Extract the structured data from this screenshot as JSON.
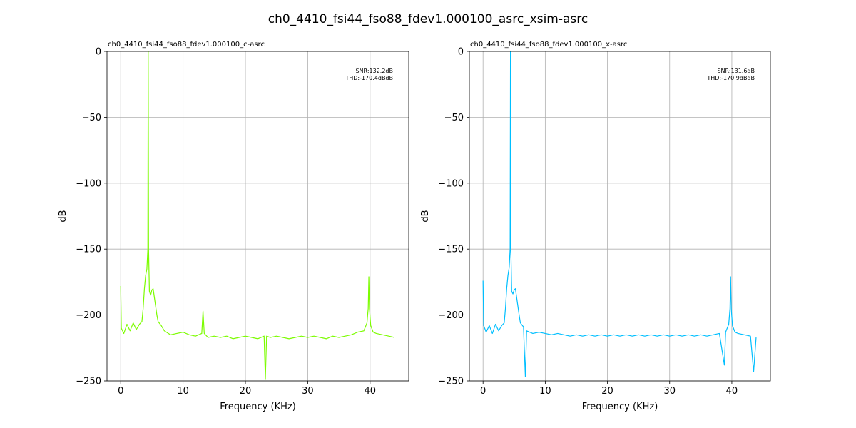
{
  "figure": {
    "suptitle": "ch0_4410_fsi44_fso88_fdev1.000100_asrc_xsim-asrc"
  },
  "chart_data": [
    {
      "type": "line",
      "title": "ch0_4410_fsi44_fso88_fdev1.000100_c-asrc",
      "xlabel": "Frequency (KHz)",
      "ylabel": "dB",
      "xlim": [
        -2.2,
        46.2
      ],
      "ylim": [
        -250,
        0
      ],
      "xticks": [
        0,
        10,
        20,
        30,
        40
      ],
      "yticks": [
        0,
        -50,
        -100,
        -150,
        -200,
        -250
      ],
      "grid": true,
      "annotation": [
        "SNR:132.2dB",
        "THD:-170.4dBdB"
      ],
      "annotation_placement": "top-right",
      "series": [
        {
          "color": "#7cfc00",
          "points": [
            [
              0.0,
              -178
            ],
            [
              0.1,
              -210
            ],
            [
              0.5,
              -214
            ],
            [
              1.0,
              -207
            ],
            [
              1.5,
              -212
            ],
            [
              2.0,
              -206
            ],
            [
              2.5,
              -211
            ],
            [
              3.0,
              -207
            ],
            [
              3.4,
              -205
            ],
            [
              3.6,
              -195
            ],
            [
              3.8,
              -180
            ],
            [
              4.0,
              -170
            ],
            [
              4.2,
              -165
            ],
            [
              4.35,
              -150
            ],
            [
              4.41,
              0
            ],
            [
              4.47,
              -150
            ],
            [
              4.6,
              -182
            ],
            [
              4.8,
              -185
            ],
            [
              5.0,
              -181
            ],
            [
              5.2,
              -180
            ],
            [
              5.5,
              -190
            ],
            [
              5.8,
              -200
            ],
            [
              6.0,
              -205
            ],
            [
              6.5,
              -208
            ],
            [
              7.0,
              -212
            ],
            [
              8.0,
              -215
            ],
            [
              9.0,
              -214
            ],
            [
              10.0,
              -213
            ],
            [
              11.0,
              -215
            ],
            [
              12.0,
              -216
            ],
            [
              13.0,
              -214
            ],
            [
              13.2,
              -197
            ],
            [
              13.4,
              -214
            ],
            [
              14.0,
              -217
            ],
            [
              15.0,
              -216
            ],
            [
              16.0,
              -217
            ],
            [
              17.0,
              -216
            ],
            [
              18.0,
              -218
            ],
            [
              19.0,
              -217
            ],
            [
              20.0,
              -216
            ],
            [
              21.0,
              -217
            ],
            [
              22.0,
              -218
            ],
            [
              23.0,
              -216
            ],
            [
              23.2,
              -249
            ],
            [
              23.4,
              -216
            ],
            [
              24.0,
              -217
            ],
            [
              25.0,
              -216
            ],
            [
              26.0,
              -217
            ],
            [
              27.0,
              -218
            ],
            [
              28.0,
              -217
            ],
            [
              29.0,
              -216
            ],
            [
              30.0,
              -217
            ],
            [
              31.0,
              -216
            ],
            [
              32.0,
              -217
            ],
            [
              33.0,
              -218
            ],
            [
              34.0,
              -216
            ],
            [
              35.0,
              -217
            ],
            [
              36.0,
              -216
            ],
            [
              37.0,
              -215
            ],
            [
              38.0,
              -213
            ],
            [
              39.0,
              -212
            ],
            [
              39.5,
              -206
            ],
            [
              39.7,
              -195
            ],
            [
              39.8,
              -171
            ],
            [
              39.9,
              -195
            ],
            [
              40.1,
              -208
            ],
            [
              40.5,
              -213
            ],
            [
              41.0,
              -214
            ],
            [
              42.0,
              -215
            ],
            [
              43.0,
              -216
            ],
            [
              43.9,
              -217
            ]
          ]
        }
      ]
    },
    {
      "type": "line",
      "title": "ch0_4410_fsi44_fso88_fdev1.000100_x-asrc",
      "xlabel": "Frequency (KHz)",
      "ylabel": "dB",
      "xlim": [
        -2.2,
        46.2
      ],
      "ylim": [
        -250,
        0
      ],
      "xticks": [
        0,
        10,
        20,
        30,
        40
      ],
      "yticks": [
        0,
        -50,
        -100,
        -150,
        -200,
        -250
      ],
      "grid": true,
      "annotation": [
        "SNR:131.6dB",
        "THD:-170.9dBdB"
      ],
      "annotation_placement": "top-right",
      "series": [
        {
          "color": "#00bfff",
          "points": [
            [
              0.0,
              -174
            ],
            [
              0.1,
              -208
            ],
            [
              0.5,
              -213
            ],
            [
              1.0,
              -208
            ],
            [
              1.5,
              -214
            ],
            [
              2.0,
              -207
            ],
            [
              2.5,
              -212
            ],
            [
              3.0,
              -208
            ],
            [
              3.4,
              -206
            ],
            [
              3.6,
              -195
            ],
            [
              3.8,
              -180
            ],
            [
              4.0,
              -170
            ],
            [
              4.2,
              -164
            ],
            [
              4.35,
              -150
            ],
            [
              4.41,
              0
            ],
            [
              4.47,
              -150
            ],
            [
              4.6,
              -182
            ],
            [
              4.8,
              -184
            ],
            [
              5.0,
              -181
            ],
            [
              5.2,
              -180
            ],
            [
              5.5,
              -190
            ],
            [
              5.8,
              -200
            ],
            [
              6.0,
              -206
            ],
            [
              6.5,
              -209
            ],
            [
              6.8,
              -247
            ],
            [
              7.0,
              -212
            ],
            [
              8.0,
              -214
            ],
            [
              9.0,
              -213
            ],
            [
              10.0,
              -214
            ],
            [
              11.0,
              -215
            ],
            [
              12.0,
              -214
            ],
            [
              13.0,
              -215
            ],
            [
              14.0,
              -216
            ],
            [
              15.0,
              -215
            ],
            [
              16.0,
              -216
            ],
            [
              17.0,
              -215
            ],
            [
              18.0,
              -216
            ],
            [
              19.0,
              -215
            ],
            [
              20.0,
              -216
            ],
            [
              21.0,
              -215
            ],
            [
              22.0,
              -216
            ],
            [
              23.0,
              -215
            ],
            [
              24.0,
              -216
            ],
            [
              25.0,
              -215
            ],
            [
              26.0,
              -216
            ],
            [
              27.0,
              -215
            ],
            [
              28.0,
              -216
            ],
            [
              29.0,
              -215
            ],
            [
              30.0,
              -216
            ],
            [
              31.0,
              -215
            ],
            [
              32.0,
              -216
            ],
            [
              33.0,
              -215
            ],
            [
              34.0,
              -216
            ],
            [
              35.0,
              -215
            ],
            [
              36.0,
              -216
            ],
            [
              37.0,
              -215
            ],
            [
              38.0,
              -214
            ],
            [
              38.8,
              -238
            ],
            [
              39.0,
              -213
            ],
            [
              39.5,
              -207
            ],
            [
              39.7,
              -195
            ],
            [
              39.8,
              -171
            ],
            [
              39.9,
              -195
            ],
            [
              40.1,
              -208
            ],
            [
              40.5,
              -213
            ],
            [
              41.0,
              -214
            ],
            [
              42.0,
              -215
            ],
            [
              43.0,
              -216
            ],
            [
              43.5,
              -243
            ],
            [
              43.9,
              -217
            ]
          ]
        }
      ]
    }
  ]
}
